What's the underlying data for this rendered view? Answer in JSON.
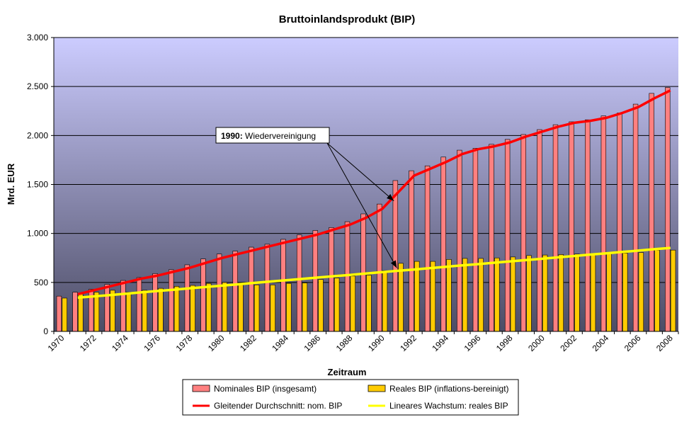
{
  "chart_data": {
    "type": "bar",
    "title": "Bruttoinlandsprodukt (BIP)",
    "xlabel": "Zeitraum",
    "ylabel": "Mrd. EUR",
    "ylim": [
      0,
      3000
    ],
    "yticks": [
      0,
      500,
      1000,
      1500,
      2000,
      2500,
      3000
    ],
    "ytick_labels": [
      "0",
      "500",
      "1.000",
      "1.500",
      "2.000",
      "2.500",
      "3.000"
    ],
    "grid": true,
    "legend_position": "bottom-center",
    "colors": {
      "nominal_bar": "#ff8080",
      "real_bar": "#ffcc00",
      "moving_avg": "#ff0000",
      "linear_trend": "#ffff00",
      "plot_bg_top": "#ccccff",
      "plot_bg_bottom": "#4d4d66"
    },
    "categories": [
      "1970",
      "1971",
      "1972",
      "1973",
      "1974",
      "1975",
      "1976",
      "1977",
      "1978",
      "1979",
      "1980",
      "1981",
      "1982",
      "1983",
      "1984",
      "1985",
      "1986",
      "1987",
      "1988",
      "1989",
      "1990",
      "1991",
      "1992",
      "1993",
      "1994",
      "1995",
      "1996",
      "1997",
      "1998",
      "1999",
      "2000",
      "2001",
      "2002",
      "2003",
      "2004",
      "2005",
      "2006",
      "2007",
      "2008"
    ],
    "xtick_labels": [
      "1970",
      "1972",
      "1974",
      "1976",
      "1978",
      "1980",
      "1982",
      "1984",
      "1986",
      "1988",
      "1990",
      "1992",
      "1994",
      "1996",
      "1998",
      "2000",
      "2002",
      "2004",
      "2006",
      "2008"
    ],
    "series": [
      {
        "name": "Nominales BIP (insgesamt)",
        "kind": "bar",
        "values": [
          360,
          400,
          430,
          480,
          520,
          550,
          590,
          630,
          680,
          740,
          790,
          820,
          860,
          890,
          940,
          985,
          1030,
          1060,
          1120,
          1200,
          1300,
          1540,
          1640,
          1690,
          1780,
          1850,
          1870,
          1910,
          1960,
          2010,
          2060,
          2110,
          2140,
          2160,
          2200,
          2230,
          2320,
          2430,
          2490
        ]
      },
      {
        "name": "Reales BIP (inflations-bereinigt)",
        "kind": "bar",
        "values": [
          340,
          380,
          400,
          420,
          400,
          420,
          440,
          460,
          470,
          490,
          500,
          475,
          475,
          475,
          490,
          495,
          530,
          545,
          565,
          575,
          620,
          695,
          715,
          715,
          735,
          745,
          745,
          750,
          760,
          775,
          780,
          785,
          790,
          785,
          790,
          800,
          805,
          830,
          830
        ]
      },
      {
        "name": "Gleitender Durchschnitt: nom. BIP",
        "kind": "line",
        "values": [
          null,
          380,
          420,
          460,
          500,
          540,
          570,
          610,
          650,
          700,
          750,
          790,
          830,
          870,
          910,
          950,
          990,
          1040,
          1090,
          1160,
          1250,
          1420,
          1590,
          1660,
          1730,
          1810,
          1860,
          1890,
          1930,
          1990,
          2040,
          2090,
          2130,
          2150,
          2180,
          2230,
          2290,
          2380,
          2460
        ]
      },
      {
        "name": "Lineares Wachstum: reales BIP",
        "kind": "line",
        "values": [
          null,
          344,
          358,
          371,
          385,
          399,
          413,
          426,
          440,
          454,
          467,
          481,
          495,
          509,
          522,
          536,
          550,
          564,
          577,
          591,
          605,
          619,
          632,
          646,
          660,
          674,
          687,
          701,
          715,
          729,
          742,
          756,
          770,
          784,
          797,
          811,
          825,
          839,
          852
        ]
      }
    ],
    "annotation": {
      "bold": "1990:",
      "text": " Wiedervereinigung",
      "targets": [
        "1991",
        "1991"
      ]
    },
    "legend": [
      {
        "label": "Nominales BIP (insgesamt)",
        "kind": "bar",
        "color": "#ff8080"
      },
      {
        "label": "Reales BIP (inflations-bereinigt)",
        "kind": "bar",
        "color": "#ffcc00"
      },
      {
        "label": "Gleitender Durchschnitt: nom. BIP",
        "kind": "line",
        "color": "#ff0000"
      },
      {
        "label": "Lineares Wachstum: reales BIP",
        "kind": "line",
        "color": "#ffff00"
      }
    ]
  }
}
